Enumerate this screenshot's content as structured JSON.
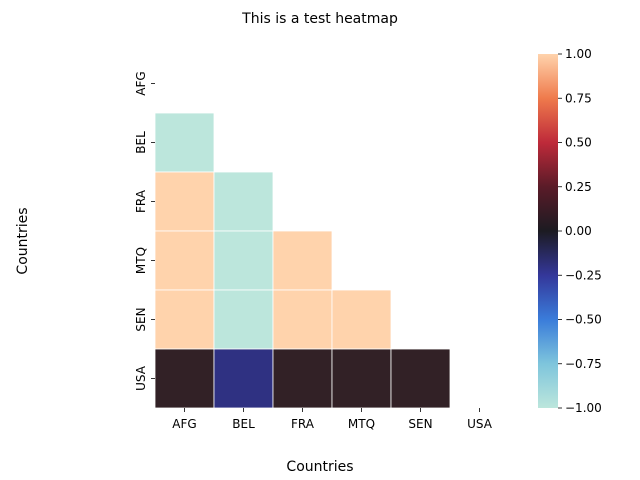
{
  "chart_data": {
    "type": "heatmap",
    "title": "This is a test heatmap",
    "xlabel": "Countries",
    "ylabel": "Countries",
    "x_categories": [
      "AFG",
      "BEL",
      "FRA",
      "MTQ",
      "SEN",
      "USA"
    ],
    "y_categories": [
      "AFG",
      "BEL",
      "FRA",
      "MTQ",
      "SEN",
      "USA"
    ],
    "mask": "upper-triangle-including-diagonal",
    "values": [
      [
        null,
        null,
        null,
        null,
        null,
        null
      ],
      [
        -1.0,
        null,
        null,
        null,
        null,
        null
      ],
      [
        1.0,
        -1.0,
        null,
        null,
        null,
        null
      ],
      [
        1.0,
        -1.0,
        1.0,
        null,
        null,
        null
      ],
      [
        1.0,
        -1.0,
        1.0,
        1.0,
        null,
        null
      ],
      [
        0.2,
        -0.2,
        0.2,
        0.2,
        0.2,
        null
      ]
    ],
    "colorbar": {
      "vmin": -1.0,
      "vmax": 1.0,
      "center": 0.0,
      "ticks": [
        "1.00",
        "0.75",
        "0.50",
        "0.25",
        "0.00",
        "−0.25",
        "−0.50",
        "−0.75",
        "−1.00"
      ],
      "tick_values": [
        1.0,
        0.75,
        0.5,
        0.25,
        0.0,
        -0.25,
        -0.5,
        -0.75,
        -1.0
      ],
      "colormap": "icefire"
    },
    "grid": false,
    "cell_border_color": "#ffffff"
  }
}
